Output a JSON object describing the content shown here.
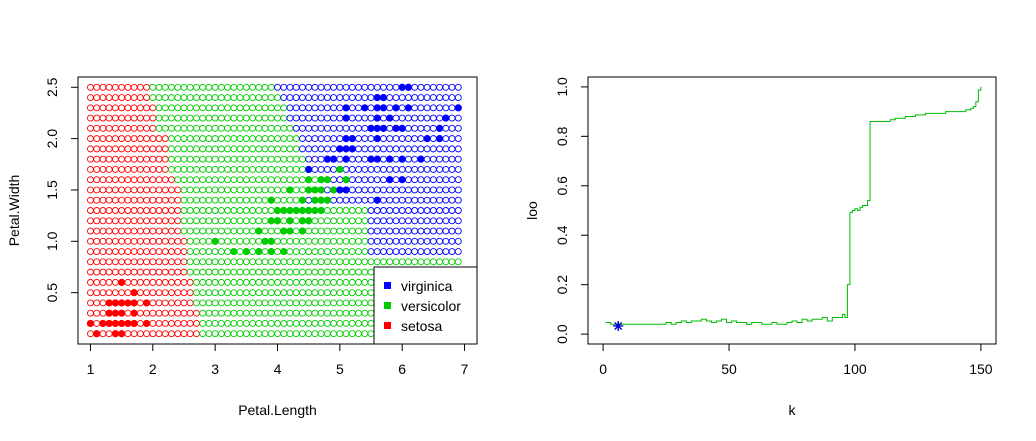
{
  "chart_data": [
    {
      "type": "scatter",
      "name": "knn-decision-region",
      "xlabel": "Petal.Length",
      "ylabel": "Petal.Width",
      "xlim": [
        0.8,
        7.2
      ],
      "ylim": [
        0.0,
        2.6
      ],
      "xticks": [
        1,
        2,
        3,
        4,
        5,
        6,
        7
      ],
      "xtick_labels": [
        "1",
        "2",
        "3",
        "4",
        "5",
        "6",
        "7"
      ],
      "yticks": [
        0.5,
        1.0,
        1.5,
        2.0,
        2.5
      ],
      "ytick_labels": [
        "0.5",
        "1.0",
        "1.5",
        "2.0",
        "2.5"
      ],
      "grid": {
        "x_start": 1.0,
        "x_end": 6.9,
        "x_step": 0.1,
        "y_start": 0.1,
        "y_end": 2.5,
        "y_step": 0.1,
        "marker": "open-circle",
        "boundaries_note": "setosa where x is less than or equal to setosa_max_x at row y; versicolor up to versicolor_max_x; virginica beyond",
        "boundaries": [
          {
            "y": 0.1,
            "setosa_max_x": 2.7,
            "versicolor_max_x": 6.9
          },
          {
            "y": 0.2,
            "setosa_max_x": 2.7,
            "versicolor_max_x": 6.9
          },
          {
            "y": 0.3,
            "setosa_max_x": 2.7,
            "versicolor_max_x": 6.9
          },
          {
            "y": 0.4,
            "setosa_max_x": 2.6,
            "versicolor_max_x": 6.9
          },
          {
            "y": 0.5,
            "setosa_max_x": 2.6,
            "versicolor_max_x": 6.9
          },
          {
            "y": 0.6,
            "setosa_max_x": 2.6,
            "versicolor_max_x": 6.9
          },
          {
            "y": 0.7,
            "setosa_max_x": 2.5,
            "versicolor_max_x": 6.9
          },
          {
            "y": 0.8,
            "setosa_max_x": 2.5,
            "versicolor_max_x": 6.9
          },
          {
            "y": 0.9,
            "setosa_max_x": 2.5,
            "versicolor_max_x": 5.4
          },
          {
            "y": 1.0,
            "setosa_max_x": 2.5,
            "versicolor_max_x": 5.4
          },
          {
            "y": 1.1,
            "setosa_max_x": 2.4,
            "versicolor_max_x": 5.4
          },
          {
            "y": 1.2,
            "setosa_max_x": 2.4,
            "versicolor_max_x": 5.4
          },
          {
            "y": 1.3,
            "setosa_max_x": 2.4,
            "versicolor_max_x": 5.4
          },
          {
            "y": 1.4,
            "setosa_max_x": 2.4,
            "versicolor_max_x": 4.4
          },
          {
            "y": 1.5,
            "setosa_max_x": 2.4,
            "versicolor_max_x": 4.6
          },
          {
            "y": 1.6,
            "setosa_max_x": 2.3,
            "versicolor_max_x": 4.6
          },
          {
            "y": 1.7,
            "setosa_max_x": 2.2,
            "versicolor_max_x": 4.5
          },
          {
            "y": 1.8,
            "setosa_max_x": 2.2,
            "versicolor_max_x": 4.4
          },
          {
            "y": 1.9,
            "setosa_max_x": 2.2,
            "versicolor_max_x": 4.3
          },
          {
            "y": 2.0,
            "setosa_max_x": 2.2,
            "versicolor_max_x": 4.3
          },
          {
            "y": 2.1,
            "setosa_max_x": 2.0,
            "versicolor_max_x": 4.2
          },
          {
            "y": 2.2,
            "setosa_max_x": 2.0,
            "versicolor_max_x": 4.1
          },
          {
            "y": 2.3,
            "setosa_max_x": 2.0,
            "versicolor_max_x": 4.1
          },
          {
            "y": 2.4,
            "setosa_max_x": 1.9,
            "versicolor_max_x": 4.0
          },
          {
            "y": 2.5,
            "setosa_max_x": 1.9,
            "versicolor_max_x": 3.9
          }
        ]
      },
      "series": [
        {
          "name": "setosa",
          "color": "#ff0000",
          "marker": "filled-circle",
          "points": [
            [
              1.5,
              0.6
            ],
            [
              1.7,
              0.5
            ],
            [
              1.3,
              0.4
            ],
            [
              1.4,
              0.4
            ],
            [
              1.5,
              0.4
            ],
            [
              1.6,
              0.4
            ],
            [
              1.7,
              0.4
            ],
            [
              1.9,
              0.4
            ],
            [
              1.3,
              0.3
            ],
            [
              1.4,
              0.3
            ],
            [
              1.5,
              0.3
            ],
            [
              1.7,
              0.3
            ],
            [
              1.0,
              0.2
            ],
            [
              1.2,
              0.2
            ],
            [
              1.3,
              0.2
            ],
            [
              1.4,
              0.2
            ],
            [
              1.5,
              0.2
            ],
            [
              1.6,
              0.2
            ],
            [
              1.7,
              0.2
            ],
            [
              1.9,
              0.2
            ],
            [
              1.1,
              0.1
            ],
            [
              1.4,
              0.1
            ],
            [
              1.5,
              0.1
            ]
          ]
        },
        {
          "name": "versicolor",
          "color": "#00cc00",
          "marker": "filled-circle",
          "points": [
            [
              4.5,
              1.7
            ],
            [
              5.0,
              1.7
            ],
            [
              4.5,
              1.6
            ],
            [
              4.7,
              1.6
            ],
            [
              4.8,
              1.6
            ],
            [
              5.1,
              1.6
            ],
            [
              4.2,
              1.5
            ],
            [
              4.5,
              1.5
            ],
            [
              4.6,
              1.5
            ],
            [
              4.7,
              1.5
            ],
            [
              4.9,
              1.5
            ],
            [
              3.9,
              1.4
            ],
            [
              4.4,
              1.4
            ],
            [
              4.6,
              1.4
            ],
            [
              4.7,
              1.4
            ],
            [
              4.8,
              1.4
            ],
            [
              4.0,
              1.3
            ],
            [
              4.1,
              1.3
            ],
            [
              4.2,
              1.3
            ],
            [
              4.3,
              1.3
            ],
            [
              4.4,
              1.3
            ],
            [
              4.5,
              1.3
            ],
            [
              4.6,
              1.3
            ],
            [
              4.7,
              1.3
            ],
            [
              3.9,
              1.2
            ],
            [
              4.0,
              1.2
            ],
            [
              4.2,
              1.2
            ],
            [
              4.4,
              1.2
            ],
            [
              4.5,
              1.2
            ],
            [
              3.7,
              1.1
            ],
            [
              4.1,
              1.1
            ],
            [
              4.2,
              1.1
            ],
            [
              4.4,
              1.1
            ],
            [
              3.0,
              1.0
            ],
            [
              3.8,
              1.0
            ],
            [
              3.9,
              1.0
            ],
            [
              3.3,
              0.9
            ],
            [
              3.5,
              0.9
            ],
            [
              3.7,
              0.9
            ],
            [
              3.9,
              0.9
            ],
            [
              4.1,
              0.9
            ]
          ]
        },
        {
          "name": "virginica",
          "color": "#0000ff",
          "marker": "filled-circle",
          "points": [
            [
              6.0,
              2.5
            ],
            [
              6.1,
              2.5
            ],
            [
              5.6,
              2.4
            ],
            [
              5.7,
              2.4
            ],
            [
              5.1,
              2.3
            ],
            [
              5.4,
              2.3
            ],
            [
              5.6,
              2.3
            ],
            [
              5.7,
              2.3
            ],
            [
              5.9,
              2.3
            ],
            [
              6.1,
              2.3
            ],
            [
              6.9,
              2.3
            ],
            [
              5.1,
              2.2
            ],
            [
              5.6,
              2.2
            ],
            [
              5.8,
              2.2
            ],
            [
              6.7,
              2.2
            ],
            [
              5.5,
              2.1
            ],
            [
              5.6,
              2.1
            ],
            [
              5.7,
              2.1
            ],
            [
              5.9,
              2.1
            ],
            [
              6.0,
              2.1
            ],
            [
              6.6,
              2.1
            ],
            [
              5.1,
              2.0
            ],
            [
              5.2,
              2.0
            ],
            [
              5.6,
              2.0
            ],
            [
              6.4,
              2.0
            ],
            [
              6.6,
              2.0
            ],
            [
              5.0,
              1.9
            ],
            [
              5.1,
              1.9
            ],
            [
              5.2,
              1.9
            ],
            [
              4.8,
              1.8
            ],
            [
              4.9,
              1.8
            ],
            [
              5.1,
              1.8
            ],
            [
              5.5,
              1.8
            ],
            [
              5.6,
              1.8
            ],
            [
              5.8,
              1.8
            ],
            [
              6.0,
              1.8
            ],
            [
              6.3,
              1.8
            ],
            [
              4.5,
              1.7
            ],
            [
              5.8,
              1.6
            ],
            [
              6.0,
              1.6
            ],
            [
              5.0,
              1.5
            ],
            [
              5.1,
              1.5
            ],
            [
              5.6,
              1.4
            ]
          ]
        }
      ],
      "legend": {
        "position": "bottom-right",
        "entries": [
          {
            "label": "virginica",
            "color": "#0000ff"
          },
          {
            "label": "versicolor",
            "color": "#00cc00"
          },
          {
            "label": "setosa",
            "color": "#ff0000"
          }
        ]
      }
    },
    {
      "type": "line",
      "name": "loo-error-vs-k",
      "xlabel": "k",
      "ylabel": "loo",
      "xlim": [
        -6,
        156
      ],
      "ylim": [
        -0.04,
        1.04
      ],
      "xticks": [
        0,
        50,
        100,
        150
      ],
      "xtick_labels": [
        "0",
        "50",
        "100",
        "150"
      ],
      "yticks": [
        0.0,
        0.2,
        0.4,
        0.6,
        0.8,
        1.0
      ],
      "ytick_labels": [
        "0.0",
        "0.2",
        "0.4",
        "0.6",
        "0.8",
        "1.0"
      ],
      "series": [
        {
          "name": "loo",
          "color": "#00bb00",
          "x": [
            1,
            3,
            5,
            7,
            9,
            11,
            13,
            15,
            17,
            19,
            21,
            23,
            25,
            27,
            29,
            31,
            33,
            35,
            37,
            39,
            41,
            43,
            45,
            47,
            49,
            51,
            53,
            55,
            57,
            59,
            61,
            63,
            65,
            67,
            69,
            71,
            73,
            75,
            77,
            79,
            81,
            83,
            85,
            87,
            89,
            91,
            93,
            95,
            96,
            97,
            98,
            99,
            100,
            101,
            102,
            103,
            104,
            105,
            106,
            107,
            108,
            110,
            112,
            114,
            116,
            118,
            120,
            122,
            124,
            126,
            128,
            130,
            132,
            134,
            136,
            138,
            140,
            142,
            144,
            146,
            147,
            148,
            149,
            150
          ],
          "y": [
            0.047,
            0.04,
            0.04,
            0.04,
            0.04,
            0.04,
            0.04,
            0.04,
            0.04,
            0.04,
            0.04,
            0.04,
            0.047,
            0.04,
            0.047,
            0.053,
            0.047,
            0.053,
            0.053,
            0.06,
            0.053,
            0.047,
            0.053,
            0.06,
            0.047,
            0.053,
            0.047,
            0.047,
            0.04,
            0.047,
            0.047,
            0.04,
            0.04,
            0.047,
            0.04,
            0.04,
            0.047,
            0.053,
            0.047,
            0.06,
            0.053,
            0.06,
            0.06,
            0.067,
            0.053,
            0.067,
            0.067,
            0.08,
            0.067,
            0.2,
            0.493,
            0.5,
            0.507,
            0.5,
            0.513,
            0.52,
            0.52,
            0.54,
            0.86,
            0.86,
            0.86,
            0.86,
            0.86,
            0.867,
            0.873,
            0.873,
            0.88,
            0.88,
            0.887,
            0.887,
            0.893,
            0.893,
            0.893,
            0.893,
            0.9,
            0.9,
            0.9,
            0.9,
            0.907,
            0.913,
            0.92,
            0.94,
            0.987,
            1.0
          ]
        }
      ],
      "highlight": {
        "k": 6,
        "loo": 0.033,
        "color": "#0000cc",
        "marker": "asterisk"
      }
    }
  ]
}
